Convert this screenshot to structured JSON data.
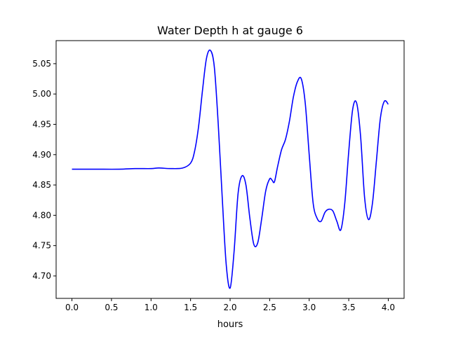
{
  "chart_data": {
    "type": "line",
    "title": "Water Depth h at gauge 6",
    "xlabel": "hours",
    "ylabel": "",
    "xlim": [
      -0.2,
      4.2
    ],
    "ylim": [
      4.663,
      5.088
    ],
    "xticks": [
      0.0,
      0.5,
      1.0,
      1.5,
      2.0,
      2.5,
      3.0,
      3.5,
      4.0
    ],
    "xtick_labels": [
      "0.0",
      "0.5",
      "1.0",
      "1.5",
      "2.0",
      "2.5",
      "3.0",
      "3.5",
      "4.0"
    ],
    "yticks": [
      4.7,
      4.75,
      4.8,
      4.85,
      4.9,
      4.95,
      5.0,
      5.05
    ],
    "ytick_labels": [
      "4.70",
      "4.75",
      "4.80",
      "4.85",
      "4.90",
      "4.95",
      "5.00",
      "5.05"
    ],
    "grid": false,
    "series": [
      {
        "color": "#0000ff",
        "x": [
          0.0,
          0.3,
          0.6,
          0.8,
          1.0,
          1.1,
          1.25,
          1.4,
          1.5,
          1.55,
          1.6,
          1.65,
          1.7,
          1.75,
          1.8,
          1.85,
          1.9,
          1.95,
          2.0,
          2.05,
          2.1,
          2.15,
          2.2,
          2.25,
          2.3,
          2.35,
          2.4,
          2.45,
          2.5,
          2.53,
          2.56,
          2.6,
          2.65,
          2.7,
          2.75,
          2.8,
          2.85,
          2.9,
          2.95,
          3.0,
          3.05,
          3.1,
          3.15,
          3.2,
          3.25,
          3.3,
          3.35,
          3.4,
          3.45,
          3.5,
          3.55,
          3.6,
          3.65,
          3.7,
          3.75,
          3.8,
          3.85,
          3.9,
          3.95,
          4.0
        ],
        "y": [
          4.876,
          4.876,
          4.876,
          4.877,
          4.877,
          4.878,
          4.877,
          4.878,
          4.886,
          4.905,
          4.945,
          5.005,
          5.058,
          5.072,
          5.045,
          4.95,
          4.83,
          4.72,
          4.68,
          4.74,
          4.835,
          4.865,
          4.85,
          4.795,
          4.752,
          4.755,
          4.795,
          4.84,
          4.86,
          4.858,
          4.855,
          4.88,
          4.908,
          4.925,
          4.955,
          4.995,
          5.02,
          5.025,
          4.985,
          4.9,
          4.82,
          4.795,
          4.79,
          4.805,
          4.81,
          4.807,
          4.79,
          4.776,
          4.82,
          4.905,
          4.975,
          4.985,
          4.93,
          4.83,
          4.793,
          4.82,
          4.89,
          4.96,
          4.988,
          4.983
        ]
      }
    ]
  }
}
